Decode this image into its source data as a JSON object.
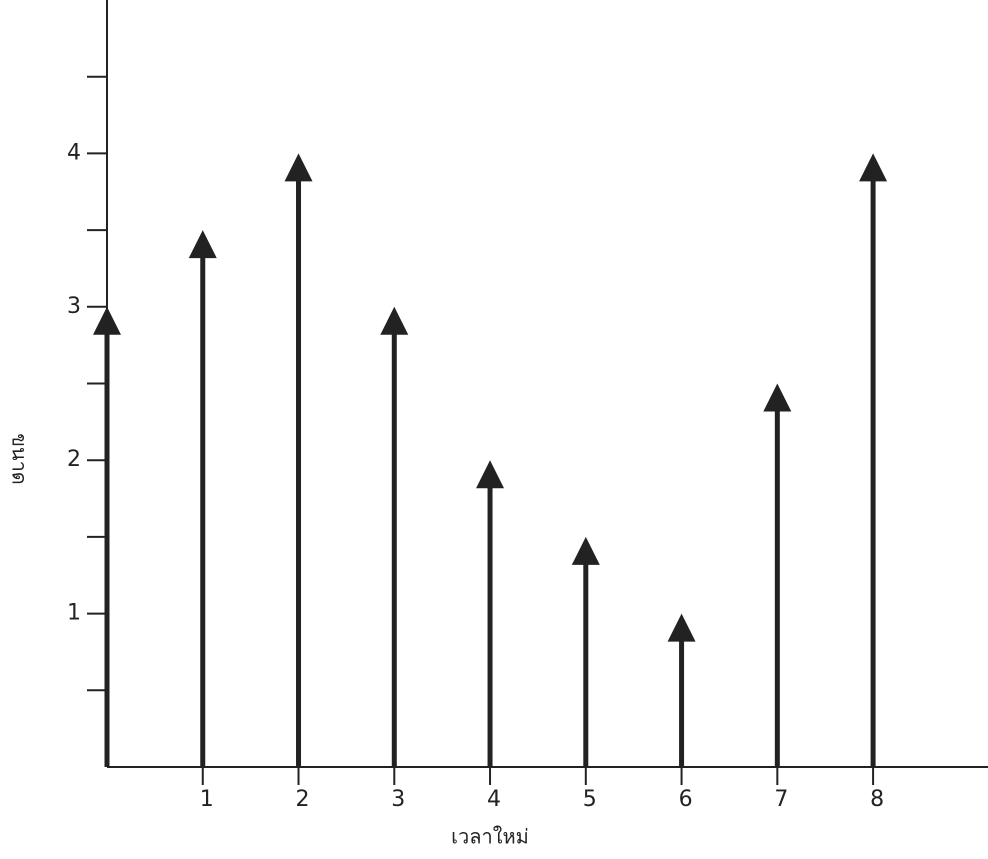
{
  "chart_data": {
    "type": "stem",
    "x_label": "เวลาใหม่",
    "y_label": "ขนาด",
    "x": [
      0,
      1,
      2,
      3,
      4,
      5,
      6,
      7,
      8
    ],
    "values": [
      3,
      3.5,
      4,
      3,
      2,
      1.5,
      1,
      2.5,
      4
    ],
    "color": "#222222",
    "xlim": [
      0,
      9.2
    ],
    "ylim": [
      0,
      5
    ],
    "xticks": [
      1,
      2,
      3,
      4,
      5,
      6,
      7,
      8
    ],
    "yticks": [
      1,
      2,
      3,
      4
    ],
    "yticks_minor": [
      0.5,
      1.5,
      2.5,
      3.5,
      4.5
    ]
  }
}
